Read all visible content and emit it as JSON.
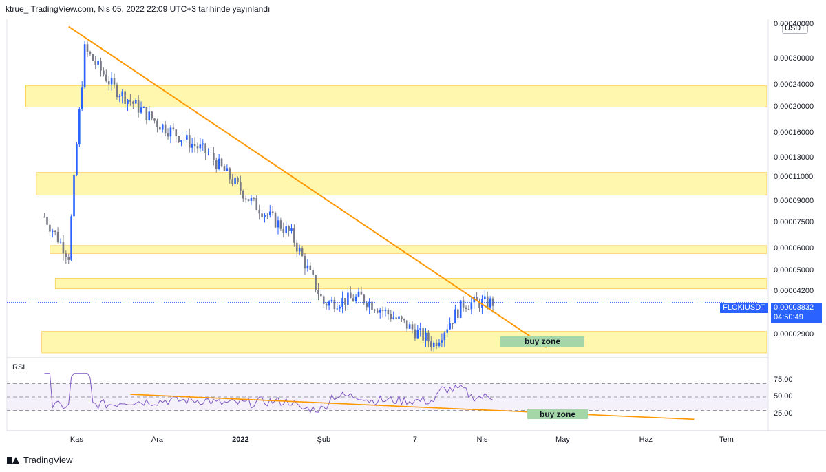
{
  "header": {
    "publish_text": "ktrue_ TradingView.com, Nis 05, 2022 22:09 UTC+3 tarihinde yayınlandı"
  },
  "currency": "USDT",
  "symbol": "FLOKIUSDT",
  "last_price": "0.00003832",
  "countdown": "04:50:49",
  "rsi_label": "RSI",
  "footer_brand": "TradingView",
  "colors": {
    "up": "#2962ff",
    "down": "#787b86",
    "zone_fill": "#fff176",
    "trend": "#ff9800",
    "buy_zone": "#a5d6a7",
    "rsi_line": "#7e57c2"
  },
  "chart_data": [
    {
      "type": "candlestick",
      "title": "",
      "y_scale": "log",
      "y_ticks": [
        "0.00040000",
        "0.00030000",
        "0.00024000",
        "0.00020000",
        "0.00016000",
        "0.00013000",
        "0.00011000",
        "0.00009000",
        "0.00007500",
        "0.00006000",
        "0.00005000",
        "0.00004200",
        "0.00002900"
      ],
      "x_ticks": [
        "Kas",
        "Ara",
        "2022",
        "Şub",
        "7",
        "Nis",
        "May",
        "Haz",
        "Tem"
      ],
      "x_range": [
        "2021-10-06",
        "2022-07-15"
      ],
      "ohlc_summary": [
        {
          "date": "2021-10-20",
          "price": 7.9e-05
        },
        {
          "date": "2021-10-29",
          "price": 5.7e-05
        },
        {
          "date": "2021-11-01",
          "price": 0.000145
        },
        {
          "date": "2021-11-04",
          "price": 0.000325
        },
        {
          "date": "2021-11-15",
          "price": 0.000235
        },
        {
          "date": "2021-12-01",
          "price": 0.000175
        },
        {
          "date": "2021-12-20",
          "price": 0.000135
        },
        {
          "date": "2022-01-05",
          "price": 9e-05
        },
        {
          "date": "2022-01-20",
          "price": 6.8e-05
        },
        {
          "date": "2022-02-01",
          "price": 3.8e-05
        },
        {
          "date": "2022-02-15",
          "price": 4e-05
        },
        {
          "date": "2022-03-01",
          "price": 3.3e-05
        },
        {
          "date": "2022-03-14",
          "price": 2.7e-05
        },
        {
          "date": "2022-03-25",
          "price": 3.8e-05
        },
        {
          "date": "2022-04-05",
          "price": 3.832e-05
        }
      ],
      "zones": [
        {
          "low": 0.0002,
          "high": 0.00024
        },
        {
          "low": 9.5e-05,
          "high": 0.000115
        },
        {
          "low": 5.8e-05,
          "high": 6.2e-05
        },
        {
          "low": 4.3e-05,
          "high": 4.7e-05
        },
        {
          "low": 2.5e-05,
          "high": 3e-05
        }
      ],
      "annotations": [
        "buy zone"
      ]
    },
    {
      "type": "line",
      "title": "RSI",
      "y_ticks": [
        "75.00",
        "50.00",
        "25.00"
      ],
      "ylim": [
        0,
        100
      ],
      "levels": [
        70,
        50,
        30
      ],
      "annotations": [
        "buy zone"
      ]
    }
  ]
}
